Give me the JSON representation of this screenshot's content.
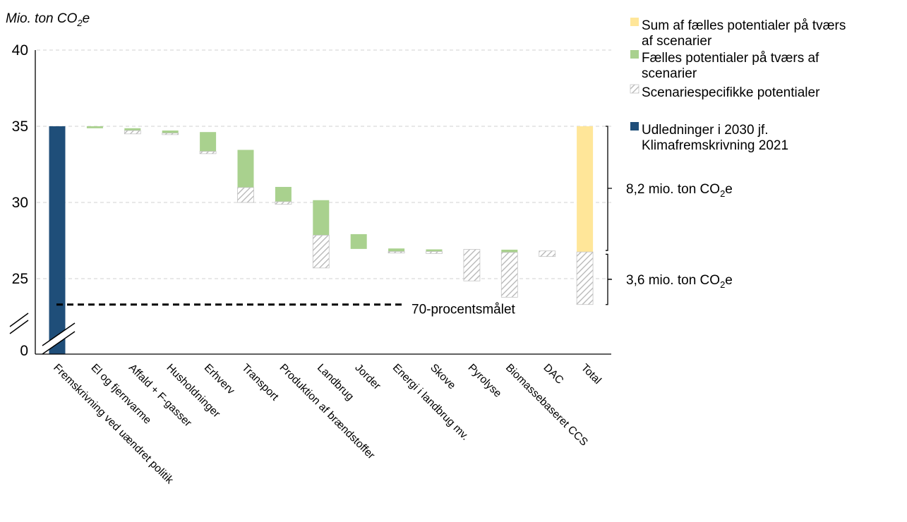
{
  "chart_data": {
    "type": "bar",
    "subtype": "waterfall",
    "ylabel": {
      "main": "Mio. ton CO",
      "sub": "2",
      "tail": "e"
    },
    "yticks": [
      {
        "label": "40",
        "value": 40
      },
      {
        "label": "35",
        "value": 35
      },
      {
        "label": "30",
        "value": 30
      },
      {
        "label": "25",
        "value": 25
      },
      {
        "label": "0",
        "value": 0
      }
    ],
    "ylim": [
      23,
      40
    ],
    "axis_break": true,
    "grid": true,
    "categories": [
      "Fremskrivning ved uændret politik",
      "El og fjernvarme",
      "Affald + F-gasser",
      "Husholdninger",
      "Erhverv",
      "Transport",
      "Produktion af brændstoffer",
      "Landbrug",
      "Jorder",
      "Energi i landbrug mv.",
      "Skove",
      "Pyrolyse",
      "Biomassebaseret CCS",
      "DAC",
      "Total"
    ],
    "base": {
      "name": "Udledninger i 2030 jf. Klimafremskrivning 2021",
      "category": "Fremskrivning ved uændret politik",
      "value": 35.0,
      "color": "#1f4e79"
    },
    "common": {
      "name": "Fælles potentialer på tværs af scenarier",
      "color": "#a9d18e",
      "segments": [
        {
          "category": "El og fjernvarme",
          "from": 35.0,
          "to": 34.87
        },
        {
          "category": "Affald + F-gasser",
          "from": 34.87,
          "to": 34.72
        },
        {
          "category": "Husholdninger",
          "from": 34.72,
          "to": 34.45
        },
        {
          "category": "Erhverv",
          "from": 34.62,
          "to": 33.35
        },
        {
          "category": "Transport",
          "from": 33.45,
          "to": 30.98
        },
        {
          "category": "Produktion af brændstoffer",
          "from": 31.02,
          "to": 30.05
        },
        {
          "category": "Landbrug",
          "from": 30.15,
          "to": 27.85
        },
        {
          "category": "Jorder",
          "from": 27.92,
          "to": 26.95
        },
        {
          "category": "Energi i landbrug mv.",
          "from": 26.98,
          "to": 26.78
        },
        {
          "category": "Skove",
          "from": 26.92,
          "to": 26.78
        },
        {
          "category": "Biomassebaseret CCS",
          "from": 26.9,
          "to": 26.72
        }
      ]
    },
    "specific": {
      "name": "Scenariespecifikke potentialer",
      "color": "#c8c8c8",
      "segments": [
        {
          "category": "Affald + F-gasser",
          "from": 34.72,
          "to": 34.5
        },
        {
          "category": "Husholdninger",
          "from": 34.55,
          "to": 34.45
        },
        {
          "category": "Erhverv",
          "from": 33.35,
          "to": 33.2
        },
        {
          "category": "Transport",
          "from": 30.98,
          "to": 30.0
        },
        {
          "category": "Produktion af brændstoffer",
          "from": 30.05,
          "to": 29.88
        },
        {
          "category": "Landbrug",
          "from": 27.85,
          "to": 25.7
        },
        {
          "category": "Energi i landbrug mv.",
          "from": 26.78,
          "to": 26.68
        },
        {
          "category": "Skove",
          "from": 26.78,
          "to": 26.65
        },
        {
          "category": "Pyrolyse",
          "from": 26.92,
          "to": 24.85
        },
        {
          "category": "Biomassebaseret CCS",
          "from": 26.72,
          "to": 23.78
        },
        {
          "category": "DAC",
          "from": 26.82,
          "to": 26.45
        }
      ]
    },
    "total": {
      "category": "Total",
      "sum_color": "#ffe699",
      "sum_from": 35.0,
      "sum_to": 26.75,
      "spec_from": 26.75,
      "spec_to": 23.3
    },
    "target_line": {
      "label": "70-procentsmålet",
      "value": 23.3
    },
    "brackets": [
      {
        "main": "8,2 mio. ton CO",
        "sub": "2",
        "tail": "e",
        "from": 35.0,
        "to": 26.85
      },
      {
        "main": "3,6 mio. ton CO",
        "sub": "2",
        "tail": "e",
        "from": 26.6,
        "to": 23.3
      }
    ],
    "legend": {
      "position": "top-right",
      "items": [
        {
          "lines": [
            "Sum af fælles potentialer på tværs",
            "af scenarier"
          ],
          "color": "#ffe699",
          "style": "solid"
        },
        {
          "lines": [
            "Fælles potentialer på tværs af",
            "scenarier"
          ],
          "color": "#a9d18e",
          "style": "solid"
        },
        {
          "lines": [
            "Scenariespecifikke potentialer"
          ],
          "color": "#c8c8c8",
          "style": "hatch"
        },
        {
          "lines": [
            "Udledninger i 2030 jf.",
            "Klimafremskrivning 2021"
          ],
          "color": "#1f4e79",
          "style": "solid"
        }
      ]
    }
  }
}
